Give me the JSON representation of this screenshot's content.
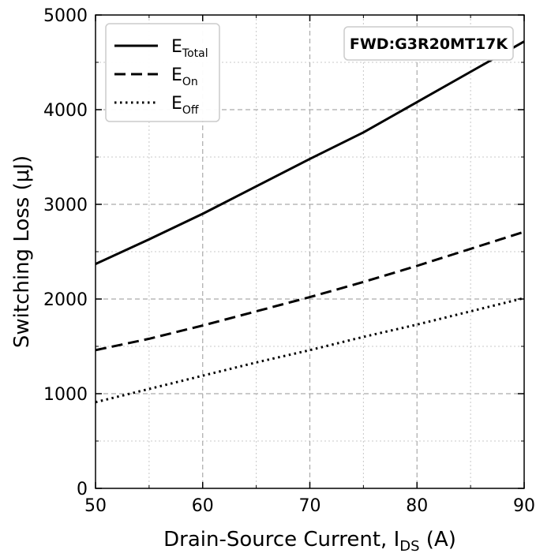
{
  "chart_data": {
    "type": "line",
    "title": "",
    "annotation": "FWD:G3R20MT17K",
    "xlabel": {
      "main": "Drain-Source Current, I",
      "sub": "DS",
      "suffix": " (A)"
    },
    "ylabel": "Switching Loss (μJ)",
    "xlim": [
      50,
      90
    ],
    "ylim": [
      0,
      5000
    ],
    "x_major_ticks": [
      50,
      60,
      70,
      80,
      90
    ],
    "y_major_ticks": [
      0,
      1000,
      2000,
      3000,
      4000,
      5000
    ],
    "x_minor_ticks": [
      55,
      65,
      75,
      85
    ],
    "y_minor_ticks": [
      500,
      1500,
      2500,
      3500,
      4500
    ],
    "grid": true,
    "legend_position": "top-left",
    "series": [
      {
        "name": "E_Total",
        "label_main": "E",
        "label_sub": "Total",
        "style": "solid",
        "color": "#000000",
        "x": [
          50,
          55,
          60,
          65,
          70,
          75,
          80,
          85,
          90
        ],
        "y": [
          2370,
          2630,
          2900,
          3190,
          3480,
          3760,
          4080,
          4400,
          4720
        ]
      },
      {
        "name": "E_On",
        "label_main": "E",
        "label_sub": "On",
        "style": "dashed",
        "color": "#000000",
        "x": [
          50,
          55,
          60,
          65,
          70,
          75,
          80,
          85,
          90
        ],
        "y": [
          1460,
          1580,
          1720,
          1870,
          2020,
          2180,
          2350,
          2530,
          2710
        ]
      },
      {
        "name": "E_Off",
        "label_main": "E",
        "label_sub": "Off",
        "style": "dotted",
        "color": "#000000",
        "x": [
          50,
          55,
          60,
          65,
          70,
          75,
          80,
          85,
          90
        ],
        "y": [
          910,
          1050,
          1190,
          1330,
          1460,
          1600,
          1730,
          1870,
          2010
        ]
      }
    ]
  }
}
